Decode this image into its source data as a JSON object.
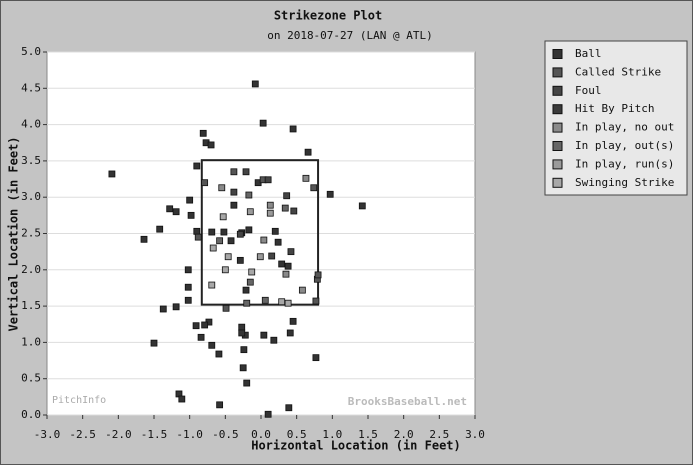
{
  "chart_data": {
    "type": "scatter",
    "title": "Strikezone Plot",
    "subtitle": "on 2018-07-27 (LAN @ ATL)",
    "x_label": "Horizontal Location (in Feet)",
    "y_label": "Vertical Location (in Feet)",
    "annotations": [
      "PitchInfo",
      "BrooksBaseball.net"
    ],
    "xlim": [
      -3,
      3
    ],
    "ylim": [
      0,
      5
    ],
    "xticks": [
      {
        "value": -3,
        "label": "-3.0"
      },
      -2.5,
      {
        "value": -2,
        "label": "-2.0"
      },
      -1.5,
      {
        "value": -1,
        "label": "-1.0"
      },
      -0.5,
      {
        "value": 0,
        "label": "0.0"
      },
      0.5,
      {
        "value": 1,
        "label": "1.0"
      },
      1.5,
      {
        "value": 2,
        "label": "2.0"
      },
      2.5,
      {
        "value": 3,
        "label": "3.0"
      }
    ],
    "yticks": [
      {
        "value": 0,
        "label": "0.0"
      },
      0.5,
      {
        "value": 1,
        "label": "1.0"
      },
      1.5,
      {
        "value": 2,
        "label": "2.0"
      },
      2.5,
      {
        "value": 3,
        "label": "3.0"
      },
      3.5,
      {
        "value": 4,
        "label": "4.0"
      },
      4.5,
      {
        "value": 5,
        "label": "5.0"
      }
    ],
    "grid": true,
    "legend": "outside-right",
    "strike_zone": {
      "x": [
        -0.83,
        0.8
      ],
      "y": [
        1.52,
        3.51
      ]
    },
    "series": [
      {
        "name": "Ball",
        "color": "#333333",
        "x": [
          -0.08,
          0.03,
          0.45,
          -0.81,
          -0.77,
          -0.7,
          0.66,
          -2.09,
          -0.9,
          -0.04,
          0.97,
          1.42,
          -1.28,
          -1.19,
          -1.0,
          -0.38,
          -0.98,
          -1.42,
          -1.64,
          -0.9,
          -0.69,
          -0.52,
          -0.27,
          -0.17,
          -0.42,
          0.2,
          0.24,
          -0.29,
          0.38,
          0.29,
          -1.02,
          -0.21,
          -1.02,
          -1.02,
          -1.19,
          -1.37,
          -0.73,
          -0.79,
          -0.91,
          -0.27,
          -0.22,
          -0.27,
          0.04,
          0.18,
          0.45,
          0.41,
          -0.84,
          -0.69,
          -1.5,
          -0.24,
          -0.59,
          0.77,
          -0.25,
          -0.2,
          -1.15,
          -1.11,
          -0.58,
          0.1,
          0.39
        ],
        "y": [
          4.56,
          4.02,
          3.94,
          3.88,
          3.75,
          3.72,
          3.62,
          3.32,
          3.43,
          3.2,
          3.04,
          2.88,
          2.84,
          2.8,
          2.96,
          2.89,
          2.75,
          2.56,
          2.42,
          2.53,
          2.52,
          2.52,
          2.51,
          2.55,
          2.4,
          2.53,
          2.38,
          2.13,
          2.05,
          2.08,
          2.0,
          1.72,
          1.76,
          1.58,
          1.49,
          1.46,
          1.28,
          1.24,
          1.23,
          1.21,
          1.1,
          1.13,
          1.1,
          1.03,
          1.29,
          1.13,
          1.07,
          0.96,
          0.99,
          0.9,
          0.84,
          0.79,
          0.65,
          0.44,
          0.29,
          0.22,
          0.14,
          0.01,
          0.1
        ]
      },
      {
        "name": "Called Strike",
        "color": "#555555",
        "x": [
          -0.38,
          0.03,
          -0.79,
          0.74,
          -0.88,
          0.79,
          0.8,
          0.77,
          -0.49
        ],
        "y": [
          3.35,
          3.24,
          3.2,
          3.13,
          2.45,
          1.87,
          1.93,
          1.57,
          1.47
        ]
      },
      {
        "name": "Foul",
        "color": "#444444",
        "x": [
          -0.21,
          0.1,
          -0.38,
          0.36,
          0.46,
          -0.29,
          0.42,
          0.15
        ],
        "y": [
          3.35,
          3.24,
          3.07,
          3.02,
          2.81,
          2.49,
          2.25,
          2.19
        ]
      },
      {
        "name": "Hit By Pitch",
        "color": "#3a3a3a",
        "x": [],
        "y": []
      },
      {
        "name": "In play, no out",
        "color": "#8a8a8a",
        "x": [
          -0.55,
          0.13,
          0.63,
          0.04,
          0.35,
          0.58
        ],
        "y": [
          3.13,
          2.89,
          3.26,
          2.41,
          1.94,
          1.72
        ]
      },
      {
        "name": "In play, out(s)",
        "color": "#666666",
        "x": [
          -0.17,
          0.34,
          -0.58,
          -0.15,
          0.06,
          -0.2
        ],
        "y": [
          3.03,
          2.85,
          2.4,
          1.83,
          1.58,
          1.54
        ]
      },
      {
        "name": "In play, run(s)",
        "color": "#9a9a9a",
        "x": [
          -0.15,
          0.13,
          -0.01
        ],
        "y": [
          2.8,
          2.78,
          2.18
        ]
      },
      {
        "name": "Swinging Strike",
        "color": "#a8a8a8",
        "x": [
          -0.53,
          -0.67,
          -0.46,
          -0.5,
          0.29,
          0.38,
          -0.69,
          -0.13
        ],
        "y": [
          2.73,
          2.3,
          2.18,
          2.0,
          1.56,
          1.54,
          1.79,
          1.97
        ]
      }
    ]
  }
}
